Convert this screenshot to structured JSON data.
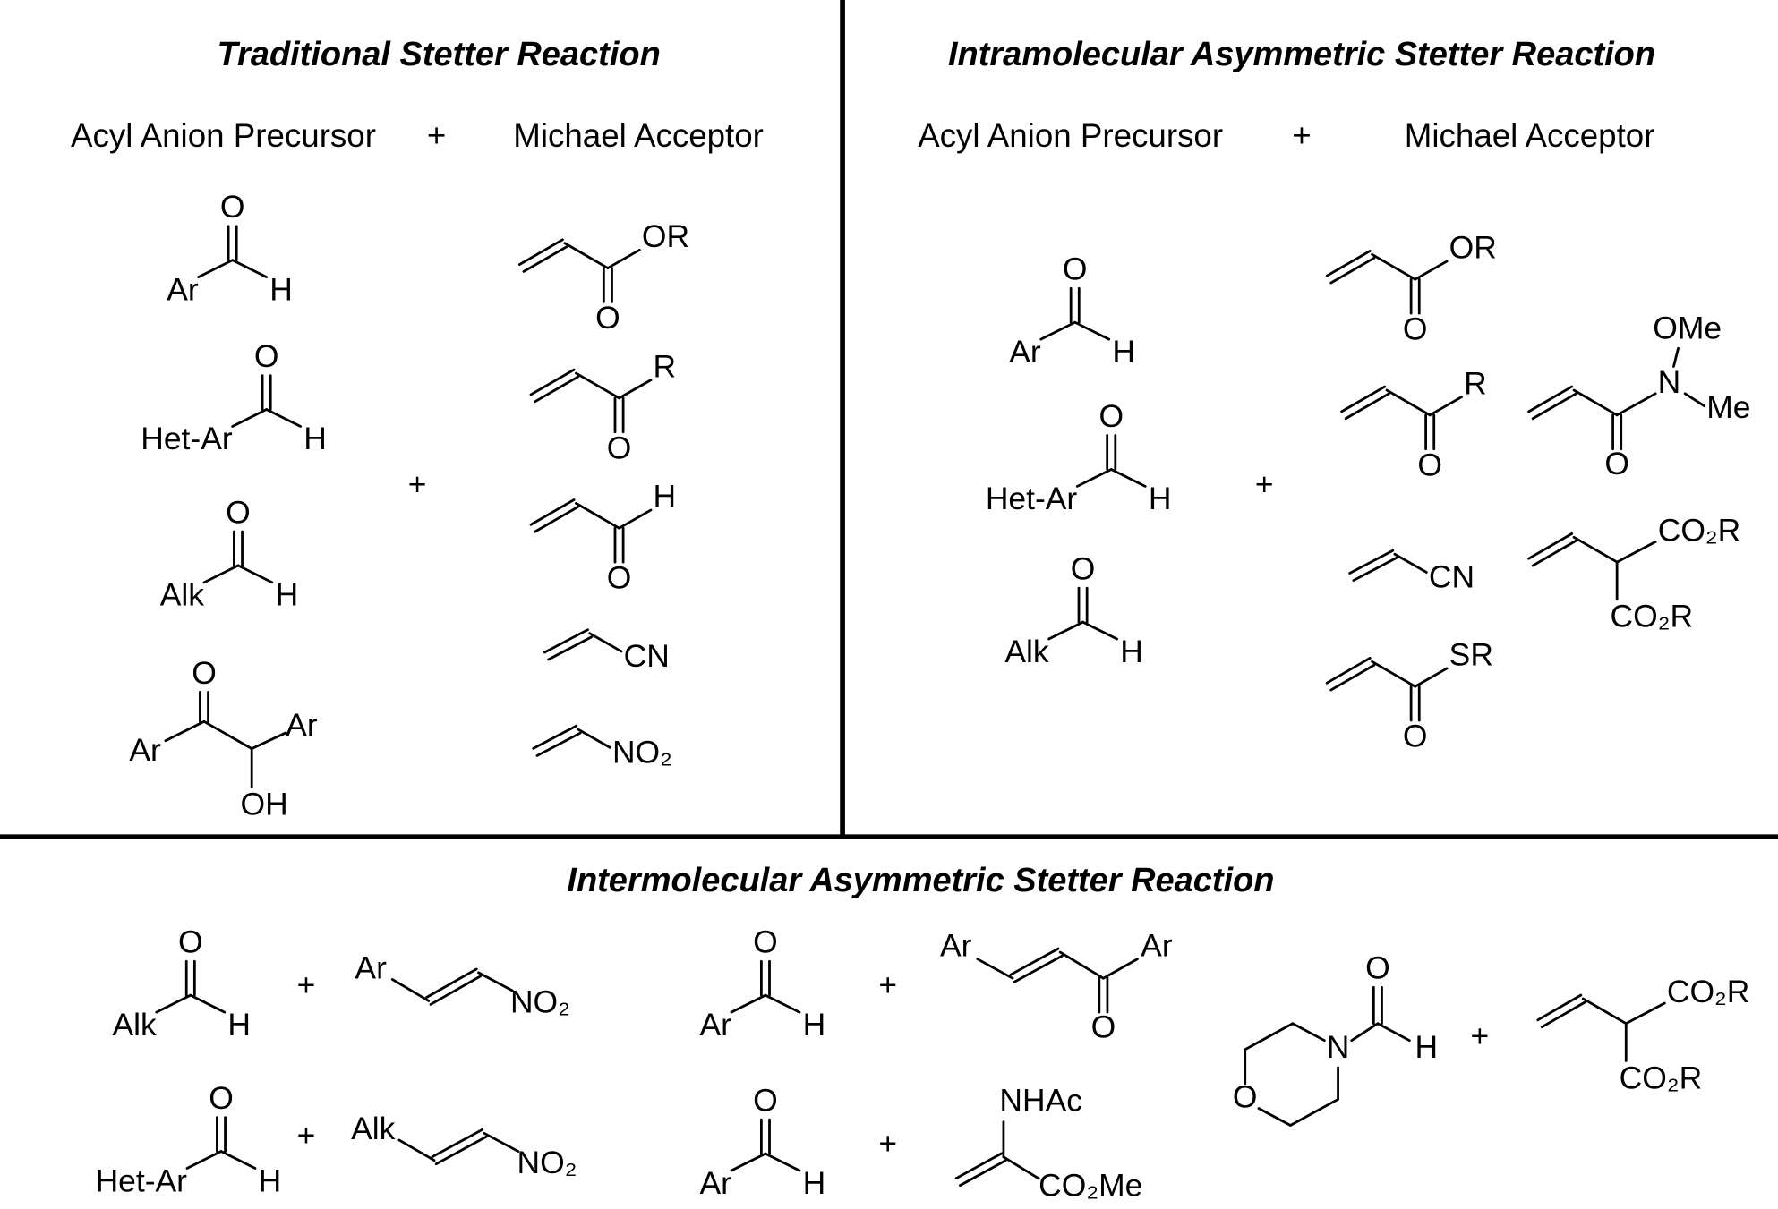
{
  "traditional": {
    "title": "Traditional Stetter Reaction",
    "precursor_label": "Acyl Anion Precursor",
    "plus": "+",
    "acceptor_label": "Michael Acceptor",
    "join": "+",
    "molecules": [
      {
        "atoms": [
          "O",
          "Ar",
          "H"
        ]
      },
      {
        "atoms": [
          "O",
          "Het-Ar",
          "H"
        ]
      },
      {
        "atoms": [
          "O",
          "Alk",
          "H"
        ]
      },
      {
        "atoms": [
          "O",
          "Ar",
          "Ar",
          "OH"
        ]
      },
      {
        "atoms": [
          "OR",
          "O"
        ]
      },
      {
        "atoms": [
          "R",
          "O"
        ]
      },
      {
        "atoms": [
          "H",
          "O"
        ]
      },
      {
        "atoms": [
          "CN"
        ]
      },
      {
        "atoms": [
          "NO₂"
        ]
      }
    ]
  },
  "intramolecular": {
    "title": "Intramolecular Asymmetric Stetter Reaction",
    "precursor_label": "Acyl Anion Precursor",
    "plus": "+",
    "acceptor_label": "Michael Acceptor",
    "join": "+",
    "molecules": [
      {
        "atoms": [
          "O",
          "Ar",
          "H"
        ]
      },
      {
        "atoms": [
          "O",
          "Het-Ar",
          "H"
        ]
      },
      {
        "atoms": [
          "O",
          "Alk",
          "H"
        ]
      },
      {
        "atoms": [
          "OR",
          "O"
        ]
      },
      {
        "atoms": [
          "R",
          "O"
        ]
      },
      {
        "atoms": [
          "OMe",
          "N",
          "Me",
          "O"
        ]
      },
      {
        "atoms": [
          "CN"
        ]
      },
      {
        "atoms": [
          "CO₂R",
          "CO₂R"
        ]
      },
      {
        "atoms": [
          "SR",
          "O"
        ]
      }
    ]
  },
  "intermolecular": {
    "title": "Intermolecular Asymmetric Stetter Reaction",
    "pluses": [
      "+",
      "+",
      "+",
      "+",
      "+"
    ],
    "molecules": [
      {
        "atoms": [
          "O",
          "Alk",
          "H"
        ]
      },
      {
        "atoms": [
          "Ar",
          "NO₂"
        ]
      },
      {
        "atoms": [
          "O",
          "Het-Ar",
          "H"
        ]
      },
      {
        "atoms": [
          "Alk",
          "NO₂"
        ]
      },
      {
        "atoms": [
          "O",
          "Ar",
          "H"
        ]
      },
      {
        "atoms": [
          "Ar",
          "Ar",
          "O"
        ]
      },
      {
        "atoms": [
          "O",
          "Ar",
          "H"
        ]
      },
      {
        "atoms": [
          "NHAc",
          "CO₂Me"
        ]
      },
      {
        "atoms": [
          "O",
          "N",
          "O",
          "H"
        ]
      },
      {
        "atoms": [
          "CO₂R",
          "CO₂R"
        ]
      }
    ]
  }
}
